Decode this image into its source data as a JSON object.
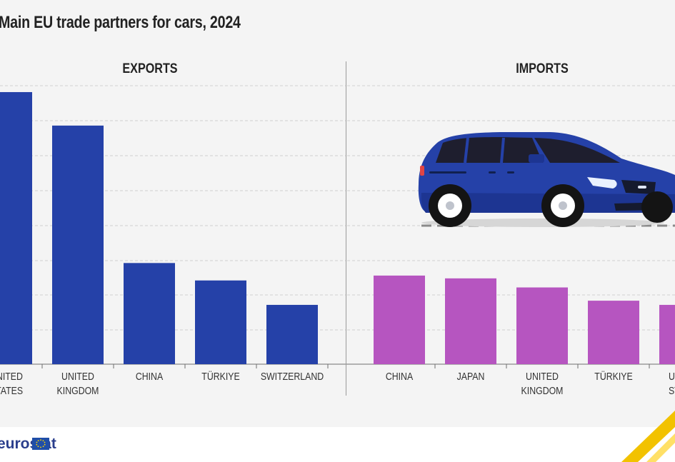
{
  "page": {
    "title": "Main EU trade partners for cars, 2024",
    "logo_text": "eurostat",
    "flag_label": "EU flag"
  },
  "chart_data": [
    {
      "type": "bar",
      "panel": "EXPORTS",
      "categories": [
        "UNITED\nSTATES",
        "UNITED\nKINGDOM",
        "CHINA",
        "TÜRKIYE",
        "SWITZERLAND"
      ],
      "values": [
        39.0,
        34.2,
        14.5,
        12.0,
        8.5
      ],
      "ylim": [
        0,
        45
      ],
      "grid": true,
      "color": "#2541a8"
    },
    {
      "type": "bar",
      "panel": "IMPORTS",
      "categories": [
        "CHINA",
        "JAPAN",
        "UNITED\nKINGDOM",
        "TÜRKIYE",
        "UNITED\nSTATES"
      ],
      "values": [
        12.7,
        12.3,
        11.0,
        9.1,
        8.5
      ],
      "ylim": [
        0,
        45
      ],
      "grid": true,
      "color": "#b655c0"
    }
  ],
  "colors": {
    "exports": "#2541a8",
    "imports": "#b655c0",
    "car_body": "#2541a8",
    "accent": "#f2c200",
    "grid": "#cfcfcf"
  },
  "icons": [
    "car-icon",
    "eu-flag-icon",
    "yellow-arrow-icon"
  ]
}
